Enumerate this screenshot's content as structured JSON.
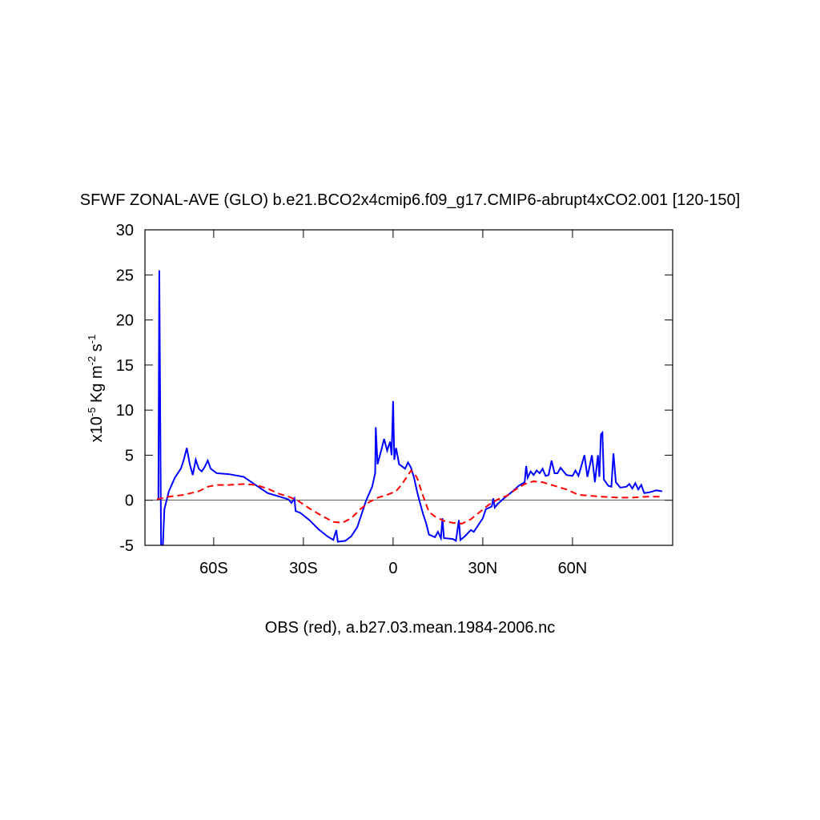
{
  "chart_data": {
    "type": "line",
    "title": "SFWF ZONAL-AVE (GLO) b.e21.BCO2x4cmip6.f09_g17.CMIP6-abrupt4xCO2.001 [120-150]",
    "y_label": [
      "x10",
      "-5",
      " Kg m",
      "-2",
      " s",
      "-1"
    ],
    "caption": "OBS (red), a.b27.03.mean.1984-2006.nc",
    "xlim": [
      -83,
      93.5
    ],
    "xticks": [
      {
        "value": -60,
        "label": "60S"
      },
      {
        "value": -30,
        "label": "30S"
      },
      0,
      {
        "value": 30,
        "label": "30N"
      },
      {
        "value": 60,
        "label": "60N"
      }
    ],
    "ylim": [
      -5,
      30
    ],
    "yticks": [
      -5,
      0,
      5,
      10,
      15,
      20,
      25,
      30
    ],
    "zero_line": true,
    "series": [
      {
        "color": "#0000ff",
        "dash": false,
        "x": [
          -78.5,
          -78.2,
          -77.6,
          -77,
          -76.5,
          -75,
          -73,
          -71,
          -70,
          -69,
          -68,
          -67,
          -66,
          -65,
          -64,
          -63,
          -62,
          -61,
          -59,
          -55,
          -50,
          -46,
          -42,
          -38,
          -35,
          -34,
          -33,
          -32.6,
          -31,
          -28,
          -25,
          -22,
          -20,
          -19,
          -18.5,
          -16,
          -14,
          -12,
          -10,
          -9,
          -7,
          -6,
          -5.8,
          -5.2,
          -4,
          -3,
          -2,
          -1,
          -0.5,
          0,
          0.4,
          1,
          2,
          4,
          5,
          6,
          7,
          8,
          9,
          10,
          11,
          12,
          14,
          15,
          16,
          16.5,
          17,
          20,
          21,
          22,
          22.5,
          24,
          26,
          27,
          29,
          30,
          31,
          33,
          33.5,
          34,
          35,
          37,
          40,
          42,
          44,
          44.5,
          45,
          46,
          47,
          48,
          49,
          50,
          51,
          52,
          53,
          54,
          55,
          56,
          58,
          60,
          61,
          62,
          64,
          65,
          66.5,
          67.5,
          68.5,
          69,
          69.5,
          70,
          70.5,
          72,
          73,
          73.7,
          74.5,
          76,
          78,
          79,
          80,
          81,
          82,
          83,
          84,
          86,
          88,
          90
        ],
        "values": [
          0.2,
          25.5,
          -5,
          -5,
          -1,
          1,
          2.5,
          3.5,
          4.5,
          5.8,
          4,
          2.8,
          4.5,
          3.5,
          3.2,
          3.7,
          4.4,
          3.5,
          3,
          2.9,
          2.6,
          1.7,
          0.8,
          0.4,
          0.1,
          -0.3,
          0.2,
          -1.2,
          -1.4,
          -2.2,
          -3.2,
          -4,
          -4.4,
          -3.3,
          -4.6,
          -4.5,
          -4,
          -3,
          -1,
          0,
          1.5,
          3,
          8.1,
          4,
          5.5,
          6.8,
          5.5,
          6.5,
          5,
          11,
          4.5,
          5.8,
          4,
          3.5,
          4.2,
          3.6,
          2.5,
          1,
          -0.3,
          -1.5,
          -2.5,
          -3.8,
          -4.1,
          -3.5,
          -4.2,
          -2,
          -4.2,
          -4.3,
          -4.5,
          -2.2,
          -4.4,
          -4,
          -3.3,
          -3.5,
          -2.5,
          -2,
          -1,
          -0.7,
          0.2,
          -0.8,
          -0.4,
          0.2,
          1,
          1.6,
          2,
          3.8,
          2.5,
          3.2,
          2.8,
          3.3,
          3,
          3.5,
          2.7,
          2.8,
          4.4,
          3,
          3,
          3.6,
          2.8,
          2.7,
          3.3,
          2.7,
          5,
          2.6,
          5,
          2,
          5,
          2.6,
          7.3,
          7.5,
          2.3,
          1.6,
          1.5,
          5.2,
          2,
          1.4,
          1.5,
          1.8,
          1.3,
          1.9,
          1.2,
          1.7,
          0.8,
          0.9,
          1.1,
          1
        ]
      },
      {
        "color": "#ff0000",
        "dash": true,
        "x": [
          -79,
          -75,
          -70,
          -65,
          -62,
          -59,
          -55,
          -50,
          -46,
          -42,
          -38,
          -35,
          -32,
          -28,
          -24,
          -20,
          -17,
          -14,
          -11,
          -8,
          -5,
          -2,
          1,
          3,
          5,
          6,
          7,
          8,
          10,
          12,
          14,
          17,
          20,
          23,
          26,
          29,
          32,
          35,
          38,
          41,
          44,
          47,
          50,
          54,
          58,
          62,
          66,
          70,
          75,
          80,
          85,
          90
        ],
        "values": [
          0.1,
          0.4,
          0.6,
          1,
          1.5,
          1.7,
          1.7,
          1.8,
          1.7,
          1.3,
          0.7,
          0.4,
          0,
          -0.9,
          -1.7,
          -2.4,
          -2.5,
          -2,
          -1,
          -0.2,
          0.3,
          0.6,
          1,
          1.8,
          2.8,
          3.3,
          3,
          2.5,
          0.5,
          -1.3,
          -1.8,
          -2.3,
          -2.5,
          -2.6,
          -2.1,
          -1.3,
          -0.5,
          0.1,
          0.5,
          1.2,
          1.8,
          2.1,
          2,
          1.6,
          1.2,
          0.6,
          0.5,
          0.4,
          0.3,
          0.3,
          0.4,
          0.4
        ]
      }
    ]
  }
}
